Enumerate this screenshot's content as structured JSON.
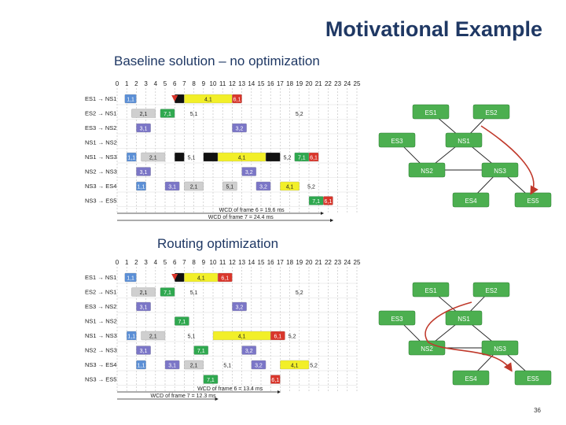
{
  "title": "Motivational Example",
  "subtitle_1": "Baseline solution – no optimization",
  "subtitle_2": "Routing optimization",
  "page_number": "36",
  "colors": {
    "yellow": "#f2ef28",
    "red": "#d9362b",
    "green": "#2fa84f",
    "purple": "#7b76c7",
    "gray": "#cfcfcf",
    "blue": "#5b8fd6",
    "black": "#111111",
    "node": "#4caf50",
    "route": "#c0392b"
  },
  "ticks": [
    "0",
    "1",
    "2",
    "3",
    "4",
    "5",
    "6",
    "7",
    "8",
    "9",
    "10",
    "11",
    "12",
    "13",
    "14",
    "15",
    "16",
    "17",
    "18",
    "19",
    "20",
    "21",
    "22",
    "23",
    "24",
    "25"
  ],
  "schedules": [
    {
      "rows": [
        {
          "label": "ES1 → NS1",
          "bars": [
            {
              "s": 0.8,
              "e": 2,
              "c": "blue",
              "t": "1,1"
            },
            {
              "s": 6,
              "e": 7,
              "c": "black",
              "t": ""
            },
            {
              "s": 7,
              "e": 12,
              "c": "yellow",
              "t": "4,1"
            },
            {
              "s": 12,
              "e": 13,
              "c": "red",
              "t": "6,1"
            }
          ]
        },
        {
          "label": "ES2 → NS1",
          "bars": [
            {
              "s": 1.5,
              "e": 4,
              "c": "gray",
              "t": "2,1"
            },
            {
              "s": 4.5,
              "e": 6,
              "c": "green",
              "t": "7,1"
            },
            {
              "s": 7,
              "e": 9,
              "c": "none",
              "t": "5,1"
            },
            {
              "s": 18,
              "e": 20,
              "c": "none",
              "t": "5,2"
            }
          ]
        },
        {
          "label": "ES3 → NS2",
          "bars": [
            {
              "s": 2,
              "e": 3.5,
              "c": "purple",
              "t": "3,1"
            },
            {
              "s": 12,
              "e": 13.5,
              "c": "purple",
              "t": "3,2"
            }
          ]
        },
        {
          "label": "NS1 → NS2",
          "bars": []
        },
        {
          "label": "NS1 → NS3",
          "bars": [
            {
              "s": 1,
              "e": 2,
              "c": "blue",
              "t": "1,1"
            },
            {
              "s": 2.5,
              "e": 5,
              "c": "gray",
              "t": "2,1"
            },
            {
              "s": 6,
              "e": 7,
              "c": "black",
              "t": ""
            },
            {
              "s": 7,
              "e": 8.5,
              "c": "none",
              "t": "5,1"
            },
            {
              "s": 9,
              "e": 10.5,
              "c": "black",
              "t": ""
            },
            {
              "s": 10.5,
              "e": 15.5,
              "c": "yellow",
              "t": "4,1"
            },
            {
              "s": 15.5,
              "e": 17,
              "c": "black",
              "t": ""
            },
            {
              "s": 17,
              "e": 18.5,
              "c": "none",
              "t": "5,2"
            },
            {
              "s": 18.5,
              "e": 20,
              "c": "green",
              "t": "7,1"
            },
            {
              "s": 20,
              "e": 21,
              "c": "red",
              "t": "6,1"
            }
          ]
        },
        {
          "label": "NS2 → NS3",
          "bars": [
            {
              "s": 2,
              "e": 3.5,
              "c": "purple",
              "t": "3,1"
            },
            {
              "s": 13,
              "e": 14.5,
              "c": "purple",
              "t": "3,2"
            }
          ]
        },
        {
          "label": "NS3 → ES4",
          "bars": [
            {
              "s": 2,
              "e": 3,
              "c": "blue",
              "t": "1,1"
            },
            {
              "s": 5,
              "e": 6.5,
              "c": "purple",
              "t": "3,1"
            },
            {
              "s": 7,
              "e": 9,
              "c": "gray",
              "t": "2,1"
            },
            {
              "s": 11,
              "e": 12.5,
              "c": "gray",
              "t": "5,1"
            },
            {
              "s": 14.5,
              "e": 16,
              "c": "purple",
              "t": "3,2"
            },
            {
              "s": 17,
              "e": 19,
              "c": "yellow",
              "t": "4,1"
            },
            {
              "s": 19.5,
              "e": 21,
              "c": "none",
              "t": "5,2"
            }
          ]
        },
        {
          "label": "NS3 → ES5",
          "bars": [
            {
              "s": 20,
              "e": 21.5,
              "c": "green",
              "t": "7,1"
            },
            {
              "s": 21.5,
              "e": 22.5,
              "c": "red",
              "t": "6,1"
            }
          ]
        }
      ],
      "wcd1": "WCD of frame 6 = 19.6 ms",
      "wcd2": "WCD of frame 7 = 24.4 ms",
      "wcd1_end": 21.5,
      "wcd2_end": 22.5
    },
    {
      "rows": [
        {
          "label": "ES1 → NS1",
          "bars": [
            {
              "s": 0.8,
              "e": 2,
              "c": "blue",
              "t": "1,1"
            },
            {
              "s": 6,
              "e": 7,
              "c": "black",
              "t": ""
            },
            {
              "s": 7,
              "e": 10.5,
              "c": "yellow",
              "t": "4,1"
            },
            {
              "s": 10.5,
              "e": 12,
              "c": "red",
              "t": "6,1"
            }
          ]
        },
        {
          "label": "ES2 → NS1",
          "bars": [
            {
              "s": 1.5,
              "e": 4,
              "c": "gray",
              "t": "2,1"
            },
            {
              "s": 4.5,
              "e": 6,
              "c": "green",
              "t": "7,1"
            },
            {
              "s": 7,
              "e": 9,
              "c": "none",
              "t": "5,1"
            },
            {
              "s": 18,
              "e": 20,
              "c": "none",
              "t": "5,2"
            }
          ]
        },
        {
          "label": "ES3 → NS2",
          "bars": [
            {
              "s": 2,
              "e": 3.5,
              "c": "purple",
              "t": "3,1"
            },
            {
              "s": 12,
              "e": 13.5,
              "c": "purple",
              "t": "3,2"
            }
          ]
        },
        {
          "label": "NS1 → NS2",
          "bars": [
            {
              "s": 6,
              "e": 7.5,
              "c": "green",
              "t": "7,1"
            }
          ]
        },
        {
          "label": "NS1 → NS3",
          "bars": [
            {
              "s": 1,
              "e": 2,
              "c": "blue",
              "t": "1,1"
            },
            {
              "s": 2.5,
              "e": 5,
              "c": "gray",
              "t": "2,1"
            },
            {
              "s": 7,
              "e": 8.5,
              "c": "none",
              "t": "5,1"
            },
            {
              "s": 10,
              "e": 16,
              "c": "yellow",
              "t": "4,1"
            },
            {
              "s": 16,
              "e": 17.5,
              "c": "red",
              "t": "6,1"
            },
            {
              "s": 17.5,
              "e": 19,
              "c": "none",
              "t": "5,2"
            }
          ]
        },
        {
          "label": "NS2 → NS3",
          "bars": [
            {
              "s": 2,
              "e": 3.5,
              "c": "purple",
              "t": "3,1"
            },
            {
              "s": 8,
              "e": 9.5,
              "c": "green",
              "t": "7,1"
            },
            {
              "s": 13,
              "e": 14.5,
              "c": "purple",
              "t": "3,2"
            }
          ]
        },
        {
          "label": "NS3 → ES4",
          "bars": [
            {
              "s": 2,
              "e": 3,
              "c": "blue",
              "t": "1,1"
            },
            {
              "s": 5,
              "e": 6.5,
              "c": "purple",
              "t": "3,1"
            },
            {
              "s": 7,
              "e": 9,
              "c": "gray",
              "t": "2,1"
            },
            {
              "s": 11,
              "e": 12,
              "c": "none",
              "t": "5,1"
            },
            {
              "s": 14,
              "e": 15.5,
              "c": "purple",
              "t": "3,2"
            },
            {
              "s": 17,
              "e": 20,
              "c": "yellow",
              "t": "4,1"
            },
            {
              "s": 20,
              "e": 21,
              "c": "none",
              "t": "5,2"
            }
          ]
        },
        {
          "label": "NS3 → ES5",
          "bars": [
            {
              "s": 9,
              "e": 10.5,
              "c": "green",
              "t": "7,1"
            },
            {
              "s": 16,
              "e": 17,
              "c": "red",
              "t": "6,1"
            }
          ]
        }
      ],
      "wcd1": "WCD of frame 6 = 13.4 ms",
      "wcd2": "WCD of frame 7 = 12.3 ms",
      "wcd1_end": 17,
      "wcd2_end": 10.5
    }
  ],
  "topology": {
    "nodes": [
      {
        "id": "es1",
        "label": "ES1"
      },
      {
        "id": "es2",
        "label": "ES2"
      },
      {
        "id": "es3",
        "label": "ES3"
      },
      {
        "id": "ns1",
        "label": "NS1"
      },
      {
        "id": "ns2",
        "label": "NS2"
      },
      {
        "id": "ns3",
        "label": "NS3"
      },
      {
        "id": "es4",
        "label": "ES4"
      },
      {
        "id": "es5",
        "label": "ES5"
      }
    ],
    "edges": [
      [
        "es1",
        "ns1"
      ],
      [
        "es2",
        "ns1"
      ],
      [
        "es3",
        "ns2"
      ],
      [
        "ns1",
        "ns2"
      ],
      [
        "ns1",
        "ns3"
      ],
      [
        "ns2",
        "ns3"
      ],
      [
        "ns3",
        "es4"
      ],
      [
        "ns3",
        "es5"
      ]
    ]
  }
}
